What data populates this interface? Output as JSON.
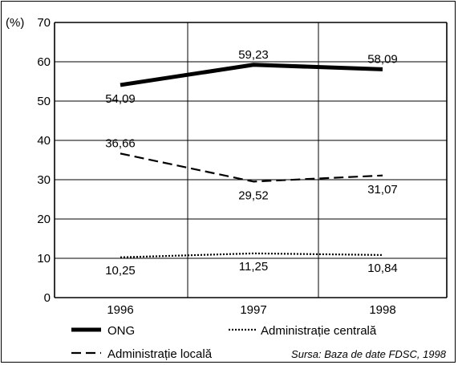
{
  "chart_data": {
    "type": "line",
    "ylabel": "(%)",
    "ylim": [
      0,
      70
    ],
    "yticks": [
      0,
      10,
      20,
      30,
      40,
      50,
      60,
      70
    ],
    "categories": [
      "1996",
      "1997",
      "1998"
    ],
    "grid": true,
    "series": [
      {
        "name": "ONG",
        "values": [
          54.09,
          59.23,
          58.09
        ],
        "labels": [
          "54,09",
          "59,23",
          "58,09"
        ],
        "style": "solid-thick",
        "color": "#000000"
      },
      {
        "name": "Administrație locală",
        "values": [
          36.66,
          29.52,
          31.07
        ],
        "labels": [
          "36,66",
          "29,52",
          "31,07"
        ],
        "style": "dashed",
        "color": "#000000"
      },
      {
        "name": "Administrație centrală",
        "values": [
          10.25,
          11.25,
          10.84
        ],
        "labels": [
          "10,25",
          "11,25",
          "10,84"
        ],
        "style": "dotted",
        "color": "#000000"
      }
    ],
    "legend_placement": "bottom",
    "source": "Sursa: Baza de date FDSC, 1998"
  }
}
